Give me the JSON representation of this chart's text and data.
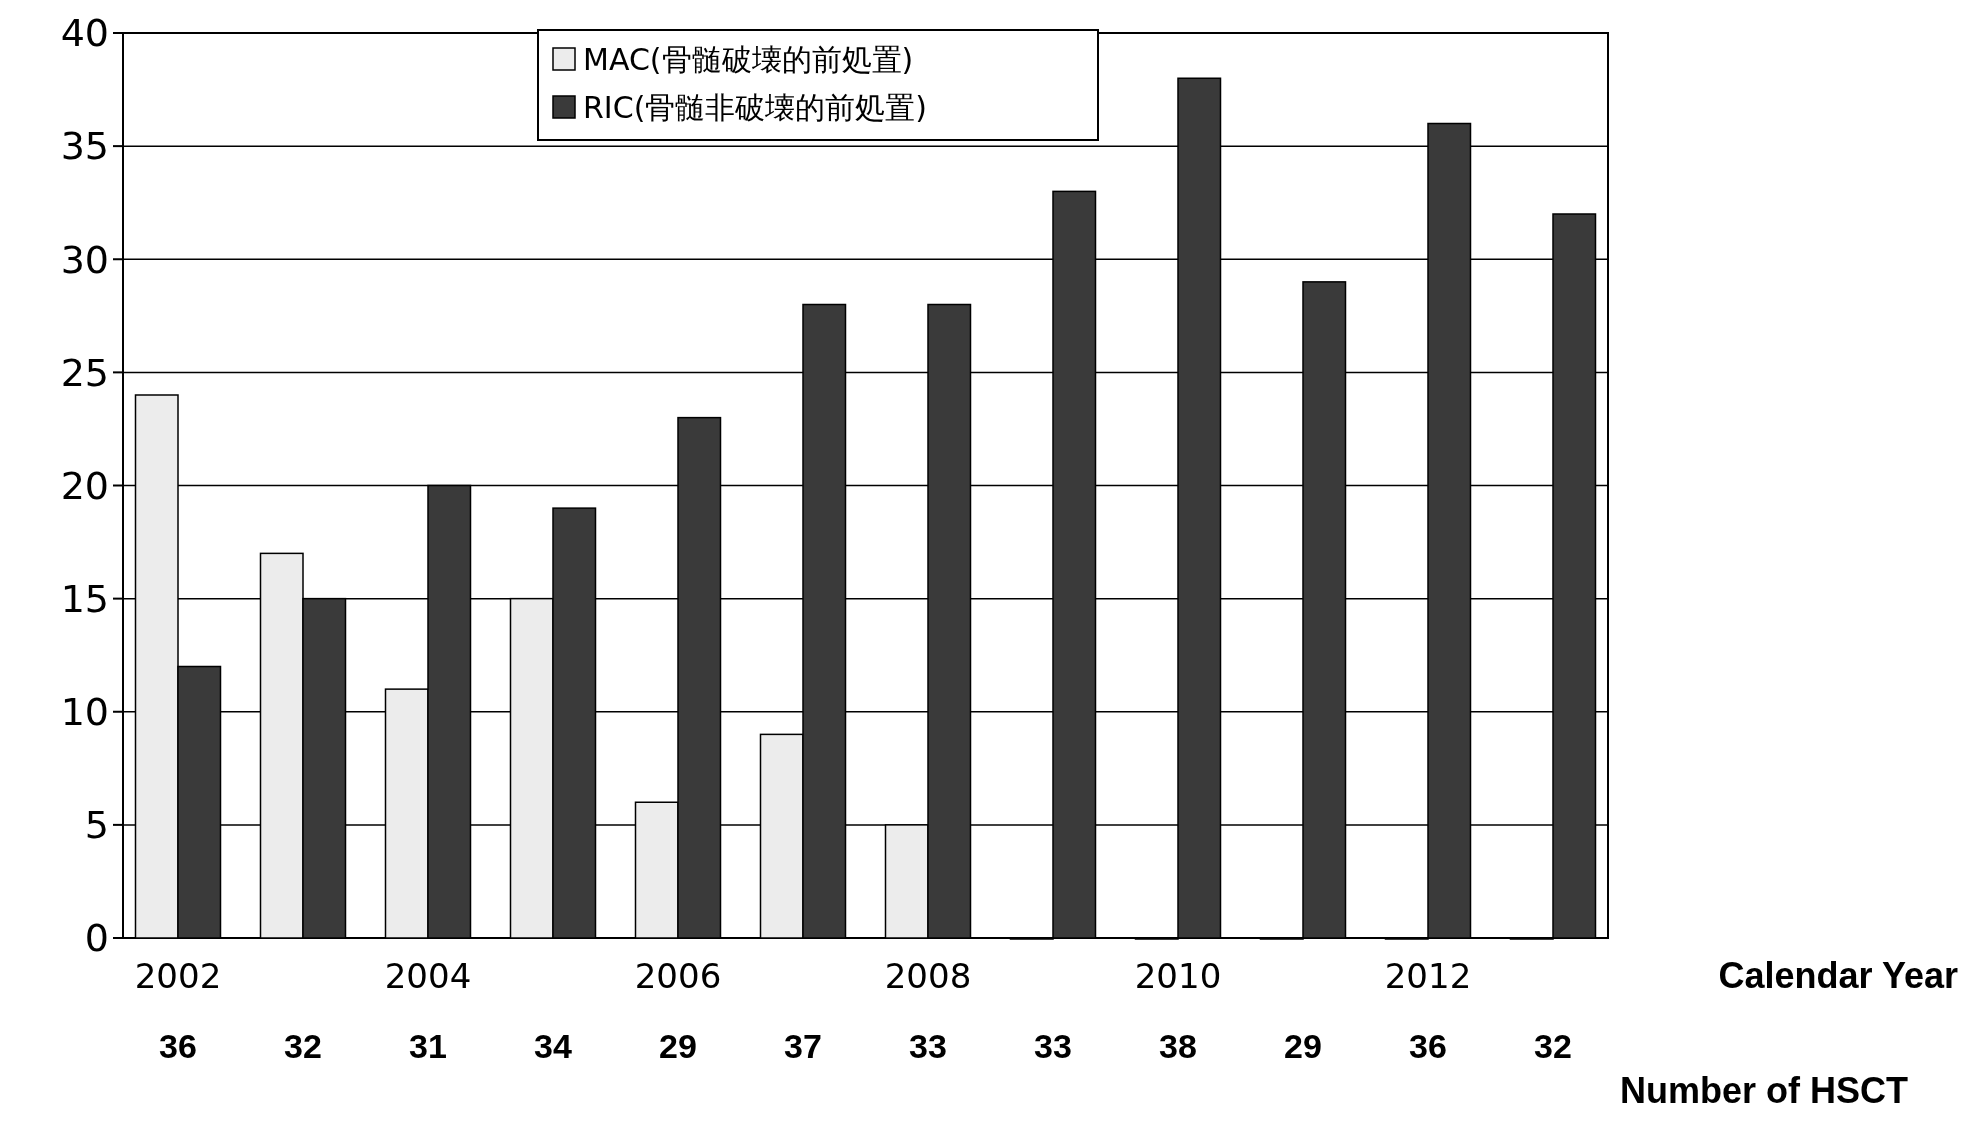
{
  "chart_data": {
    "type": "bar",
    "categories": [
      "2002",
      null,
      "2004",
      null,
      "2006",
      null,
      "2008",
      null,
      "2010",
      null,
      "2012",
      null
    ],
    "series": [
      {
        "name": "MAC(骨髄破壊的前処置)",
        "color": "#ececec",
        "values": [
          24,
          17,
          11,
          15,
          6,
          9,
          5,
          0,
          0,
          0,
          0,
          0
        ]
      },
      {
        "name": "RIC(骨髄非破壊的前処置)",
        "color": "#3a3a3a",
        "values": [
          12,
          15,
          20,
          19,
          23,
          28,
          28,
          33,
          38,
          29,
          36,
          32
        ]
      }
    ],
    "ylim": [
      0,
      40
    ],
    "yticks": [
      0,
      5,
      10,
      15,
      20,
      25,
      30,
      35,
      40
    ],
    "grid": "y",
    "legend": "top",
    "xlabel": "Calendar Year",
    "totals": [
      "36",
      "32",
      "31",
      "34",
      "29",
      "37",
      "33",
      "33",
      "38",
      "29",
      "36",
      "32"
    ],
    "annotations": [
      "Number of HSCT"
    ]
  }
}
